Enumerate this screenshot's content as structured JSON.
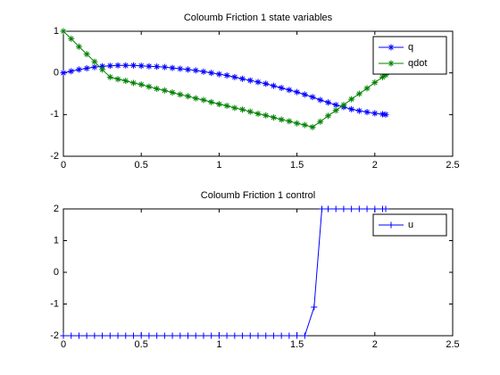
{
  "chart_data": [
    {
      "type": "line",
      "title": "Coloumb Friction 1 state variables",
      "x": [
        0,
        0.05,
        0.1,
        0.15,
        0.2,
        0.25,
        0.3,
        0.35,
        0.4,
        0.45,
        0.5,
        0.55,
        0.6,
        0.65,
        0.7,
        0.75,
        0.8,
        0.85,
        0.9,
        0.95,
        1.0,
        1.05,
        1.1,
        1.15,
        1.2,
        1.25,
        1.3,
        1.35,
        1.4,
        1.45,
        1.5,
        1.55,
        1.6,
        1.65,
        1.7,
        1.75,
        1.8,
        1.85,
        1.9,
        1.95,
        2.0,
        2.05,
        2.07
      ],
      "series": [
        {
          "name": "q",
          "color": "#0000ff",
          "marker": "*",
          "values": [
            0,
            0.04,
            0.08,
            0.11,
            0.14,
            0.16,
            0.17,
            0.18,
            0.18,
            0.18,
            0.17,
            0.16,
            0.15,
            0.14,
            0.12,
            0.1,
            0.08,
            0.06,
            0.03,
            0.0,
            -0.03,
            -0.06,
            -0.1,
            -0.14,
            -0.18,
            -0.22,
            -0.26,
            -0.31,
            -0.36,
            -0.41,
            -0.46,
            -0.52,
            -0.58,
            -0.65,
            -0.71,
            -0.77,
            -0.82,
            -0.87,
            -0.91,
            -0.94,
            -0.97,
            -0.99,
            -1.0
          ]
        },
        {
          "name": "qdot",
          "color": "#008000",
          "marker": "*",
          "values": [
            1,
            0.82,
            0.63,
            0.45,
            0.27,
            0.08,
            -0.1,
            -0.15,
            -0.19,
            -0.24,
            -0.28,
            -0.33,
            -0.38,
            -0.42,
            -0.47,
            -0.52,
            -0.56,
            -0.61,
            -0.65,
            -0.7,
            -0.75,
            -0.79,
            -0.84,
            -0.88,
            -0.93,
            -0.98,
            -1.02,
            -1.07,
            -1.12,
            -1.16,
            -1.21,
            -1.25,
            -1.3,
            -1.17,
            -1.03,
            -0.9,
            -0.77,
            -0.63,
            -0.5,
            -0.37,
            -0.23,
            -0.1,
            -0.05
          ]
        }
      ],
      "xlim": [
        0,
        2.5
      ],
      "ylim": [
        -2,
        1
      ],
      "xticks": [
        0,
        0.5,
        1,
        1.5,
        2,
        2.5
      ],
      "yticks": [
        -2,
        -1,
        0,
        1
      ],
      "legend": "upper right",
      "grid": false
    },
    {
      "type": "line",
      "title": "Coloumb Friction 1 control",
      "x": [
        0,
        0.05,
        0.1,
        0.15,
        0.2,
        0.25,
        0.3,
        0.35,
        0.4,
        0.45,
        0.5,
        0.55,
        0.6,
        0.65,
        0.7,
        0.75,
        0.8,
        0.85,
        0.9,
        0.95,
        1.0,
        1.05,
        1.1,
        1.15,
        1.2,
        1.25,
        1.3,
        1.35,
        1.4,
        1.45,
        1.5,
        1.55,
        1.61,
        1.66,
        1.7,
        1.75,
        1.8,
        1.85,
        1.9,
        1.95,
        2.0,
        2.05,
        2.07
      ],
      "series": [
        {
          "name": "u",
          "color": "#0000ff",
          "marker": "+",
          "values": [
            -2,
            -2,
            -2,
            -2,
            -2,
            -2,
            -2,
            -2,
            -2,
            -2,
            -2,
            -2,
            -2,
            -2,
            -2,
            -2,
            -2,
            -2,
            -2,
            -2,
            -2,
            -2,
            -2,
            -2,
            -2,
            -2,
            -2,
            -2,
            -2,
            -2,
            -2,
            -2,
            -1.1,
            2,
            2,
            2,
            2,
            2,
            2,
            2,
            2,
            2,
            2
          ]
        }
      ],
      "xlim": [
        0,
        2.5
      ],
      "ylim": [
        -2,
        2
      ],
      "xticks": [
        0,
        0.5,
        1,
        1.5,
        2,
        2.5
      ],
      "yticks": [
        -2,
        -1,
        0,
        1,
        2
      ],
      "legend": "upper right",
      "grid": false
    }
  ]
}
